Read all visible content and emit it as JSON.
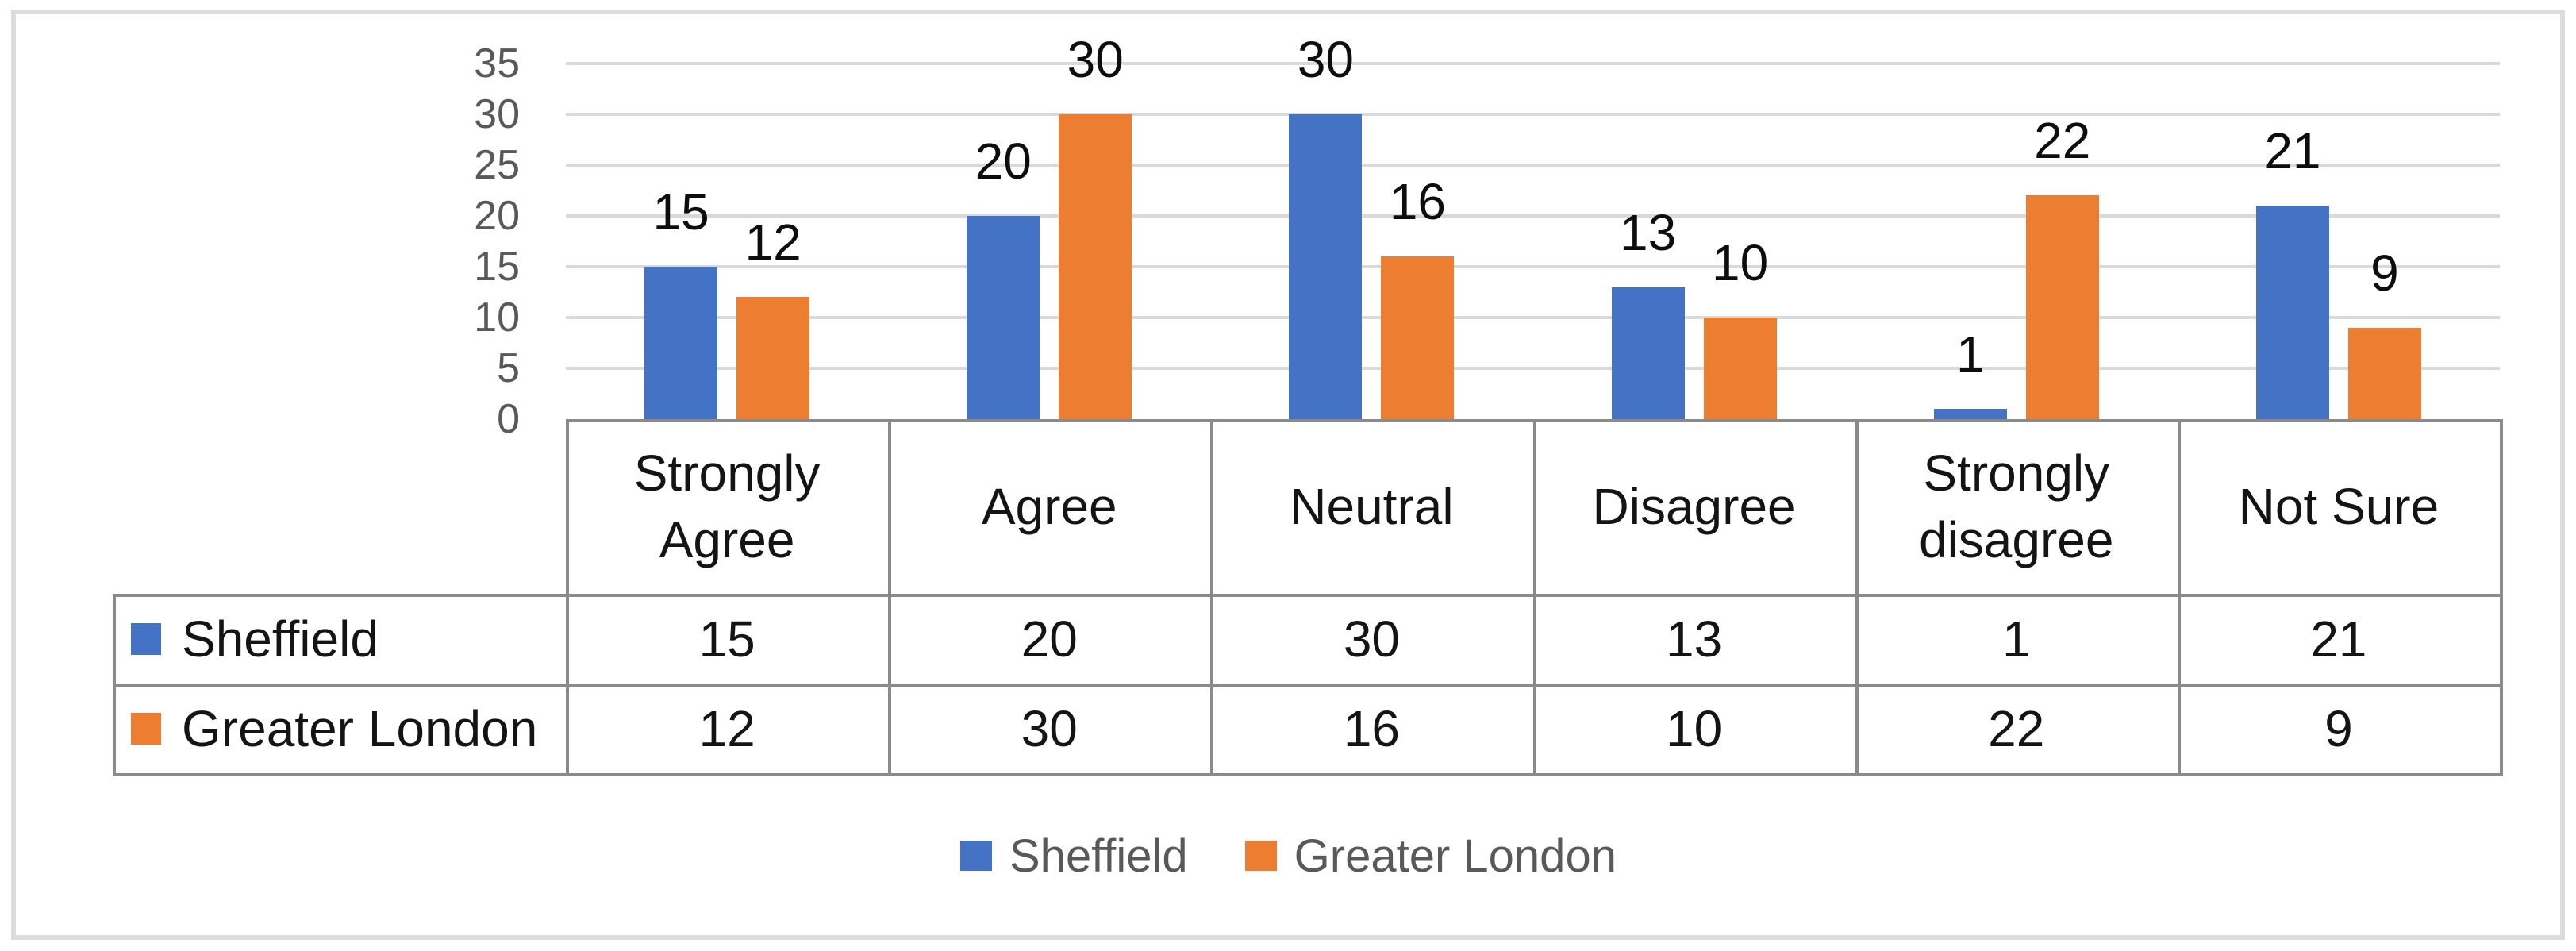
{
  "chart_data": {
    "type": "bar",
    "title": "",
    "categories": [
      "Strongly Agree",
      "Agree",
      "Neutral",
      "Disagree",
      "Strongly disagree",
      "Not Sure"
    ],
    "series": [
      {
        "name": "Sheffield",
        "color": "#4472C4",
        "values": [
          15,
          20,
          30,
          13,
          1,
          21
        ]
      },
      {
        "name": "Greater London",
        "color": "#ED7D31",
        "values": [
          12,
          30,
          16,
          10,
          22,
          9
        ]
      }
    ],
    "ylim": [
      0,
      35
    ],
    "yticks": [
      0,
      5,
      10,
      15,
      20,
      25,
      30,
      35
    ],
    "grid": true,
    "data_labels": true,
    "legend_position": "bottom",
    "has_data_table": true
  },
  "colors": {
    "series_blue": "#4472C4",
    "series_orange": "#ED7D31",
    "gridline": "#D9D9D9",
    "table_border": "#8A8A8A",
    "axis_text": "#595959",
    "data_label_text": "#0D0D0D",
    "table_text": "#141414",
    "legend_text": "#595959",
    "frame_border": "#DCDCDC",
    "background": "#FFFFFF"
  }
}
